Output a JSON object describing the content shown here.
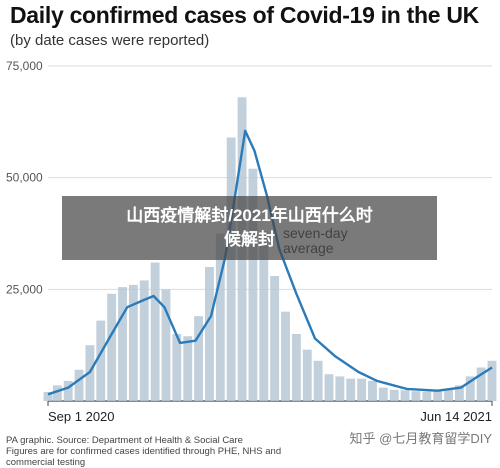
{
  "chart_data": {
    "type": "bar",
    "title": "Daily confirmed cases of Covid-19 in the UK",
    "subtitle": "(by date cases were reported)",
    "xlabel": "",
    "ylabel": "",
    "ylim": [
      0,
      75000
    ],
    "yticks": [
      0,
      25000,
      50000,
      75000
    ],
    "ytick_labels": [
      "",
      "25,000",
      "50,000",
      "75,000"
    ],
    "xtick_labels": [
      "Sep 1 2020",
      "Jun 14 2021"
    ],
    "x_range": [
      "2020-09-01",
      "2021-06-14"
    ],
    "grid": true,
    "series": [
      {
        "name": "daily cases",
        "style": "bars",
        "color": "#b7c8d6",
        "x": [
          "2020-09-01",
          "2020-09-07",
          "2020-09-14",
          "2020-09-21",
          "2020-09-28",
          "2020-10-05",
          "2020-10-12",
          "2020-10-19",
          "2020-10-26",
          "2020-11-02",
          "2020-11-09",
          "2020-11-16",
          "2020-11-23",
          "2020-11-30",
          "2020-12-07",
          "2020-12-14",
          "2020-12-21",
          "2020-12-28",
          "2021-01-04",
          "2021-01-11",
          "2021-01-18",
          "2021-01-25",
          "2021-02-01",
          "2021-02-08",
          "2021-02-15",
          "2021-02-22",
          "2021-03-01",
          "2021-03-08",
          "2021-03-15",
          "2021-03-22",
          "2021-03-29",
          "2021-04-05",
          "2021-04-12",
          "2021-04-19",
          "2021-04-26",
          "2021-05-03",
          "2021-05-10",
          "2021-05-17",
          "2021-05-24",
          "2021-05-31",
          "2021-06-07",
          "2021-06-14"
        ],
        "values": [
          2000,
          3500,
          4500,
          7000,
          12500,
          18000,
          24000,
          25500,
          26000,
          27000,
          31000,
          25000,
          15000,
          14500,
          19000,
          30000,
          37500,
          59000,
          68000,
          52000,
          38000,
          28000,
          20000,
          15000,
          11500,
          9000,
          6000,
          5500,
          5000,
          5000,
          4500,
          3000,
          2500,
          2400,
          2200,
          2100,
          2300,
          2600,
          3500,
          5500,
          7500,
          9000
        ]
      },
      {
        "name": "seven-day average",
        "style": "line",
        "color": "#2b7bb9",
        "x": [
          "2020-09-01",
          "2020-09-14",
          "2020-09-28",
          "2020-10-12",
          "2020-10-22",
          "2020-11-01",
          "2020-11-08",
          "2020-11-15",
          "2020-11-25",
          "2020-12-05",
          "2020-12-15",
          "2020-12-24",
          "2020-12-31",
          "2021-01-06",
          "2021-01-12",
          "2021-01-20",
          "2021-01-28",
          "2021-02-08",
          "2021-02-20",
          "2021-03-05",
          "2021-03-20",
          "2021-04-01",
          "2021-04-20",
          "2021-05-10",
          "2021-05-25",
          "2021-06-05",
          "2021-06-14"
        ],
        "values": [
          1500,
          3000,
          6500,
          15000,
          21000,
          22500,
          23500,
          21000,
          13000,
          13500,
          19000,
          32000,
          47000,
          60500,
          56000,
          46000,
          34000,
          24000,
          14000,
          10000,
          6500,
          4500,
          2700,
          2300,
          3000,
          5500,
          7500
        ]
      }
    ],
    "annotations": [
      {
        "text": "seven-day",
        "line": 1
      },
      {
        "text": "average",
        "line": 2
      }
    ]
  },
  "source": {
    "line1": "PA graphic. Source: Department of Health & Social Care",
    "line2": "Figures are for confirmed cases identified through PHE, NHS and commercial testing"
  },
  "overlay": {
    "text": "山西疫情解封/2021年山西什么时候解封"
  },
  "watermark": {
    "text": "知乎 @七月教育留学DIY"
  }
}
